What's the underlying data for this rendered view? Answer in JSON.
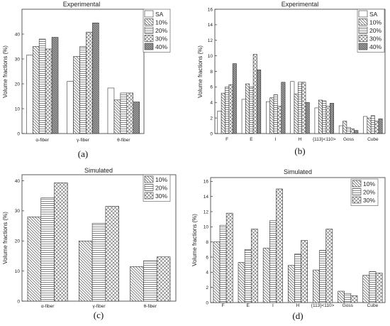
{
  "chart_data": [
    {
      "type": "bar",
      "panel": "a",
      "title": "Experimental",
      "caption": "(a)",
      "ylabel": "Volume fractions (%)",
      "ylim": [
        0,
        50
      ],
      "yticks": [
        "0",
        "10",
        "20",
        "30",
        "40"
      ],
      "categories": [
        "α-fiber",
        "γ-fiber",
        "θ-fiber"
      ],
      "series": [
        {
          "name": "SA",
          "values": [
            31.5,
            21.0,
            18.3
          ]
        },
        {
          "name": "10%",
          "values": [
            35.0,
            31.0,
            13.5
          ]
        },
        {
          "name": "20%",
          "values": [
            38.0,
            35.0,
            16.3
          ]
        },
        {
          "name": "30%",
          "values": [
            34.0,
            40.8,
            16.3
          ]
        },
        {
          "name": "40%",
          "values": [
            38.7,
            44.5,
            12.7
          ]
        }
      ],
      "legend": "top-right"
    },
    {
      "type": "bar",
      "panel": "b",
      "title": "Experimental",
      "caption": "(b)",
      "ylabel": "Volume fractions (%)",
      "ylim": [
        0,
        16
      ],
      "yticks": [
        "0",
        "2",
        "4",
        "6",
        "8",
        "10",
        "12",
        "14",
        "16"
      ],
      "categories": [
        "F",
        "E",
        "I",
        "H",
        "{113}<110>",
        "Goss",
        "Cube"
      ],
      "series": [
        {
          "name": "SA",
          "values": [
            2.9,
            4.4,
            4.1,
            6.7,
            3.3,
            1.0,
            2.2
          ]
        },
        {
          "name": "10%",
          "values": [
            5.2,
            6.4,
            4.6,
            5.1,
            4.3,
            1.6,
            2.0
          ]
        },
        {
          "name": "20%",
          "values": [
            6.0,
            6.0,
            5.0,
            6.6,
            4.2,
            0.8,
            2.3
          ]
        },
        {
          "name": "30%",
          "values": [
            6.3,
            10.2,
            3.5,
            6.6,
            3.5,
            0.6,
            1.6
          ]
        },
        {
          "name": "40%",
          "values": [
            9.0,
            8.2,
            6.6,
            4.0,
            3.9,
            0.4,
            1.9
          ]
        }
      ],
      "legend": "top-right"
    },
    {
      "type": "bar",
      "panel": "c",
      "title": "Simulated",
      "caption": "(c)",
      "ylabel": "Volume fractions (%)",
      "ylim": [
        0,
        42
      ],
      "yticks": [
        "0",
        "10",
        "20",
        "30",
        "40"
      ],
      "categories": [
        "α-fiber",
        "γ-fiber",
        "θ-fiber"
      ],
      "series": [
        {
          "name": "10%",
          "values": [
            28.0,
            20.0,
            11.5
          ]
        },
        {
          "name": "20%",
          "values": [
            34.3,
            25.8,
            13.4
          ]
        },
        {
          "name": "30%",
          "values": [
            39.3,
            31.5,
            14.7
          ]
        }
      ],
      "legend": "top-right"
    },
    {
      "type": "bar",
      "panel": "d",
      "title": "Simulated",
      "caption": "(d)",
      "ylabel": "Volume fractions (%)",
      "ylim": [
        0,
        16.5
      ],
      "yticks": [
        "0",
        "2",
        "4",
        "6",
        "8",
        "10",
        "12",
        "14",
        "16"
      ],
      "categories": [
        "F",
        "E",
        "I",
        "H",
        "{113}<110>",
        "Goss",
        "Cube"
      ],
      "series": [
        {
          "name": "10%",
          "values": [
            8.0,
            5.3,
            7.2,
            4.9,
            4.3,
            1.5,
            3.6
          ]
        },
        {
          "name": "20%",
          "values": [
            10.2,
            7.0,
            10.8,
            6.4,
            6.9,
            1.2,
            4.1
          ]
        },
        {
          "name": "30%",
          "values": [
            11.8,
            9.7,
            15.0,
            8.2,
            9.7,
            0.9,
            3.9
          ]
        }
      ],
      "legend": "top-right"
    }
  ],
  "fill_patterns": {
    "SA": "solid-white",
    "10%": "diagonal-down",
    "20%": "horizontal",
    "30%": "crosshatch",
    "40%": "dense-gray"
  },
  "colors": {
    "background": "#ffffff",
    "stroke": "#333333",
    "hatch": "#555555",
    "dense": "#8a8a8a"
  }
}
